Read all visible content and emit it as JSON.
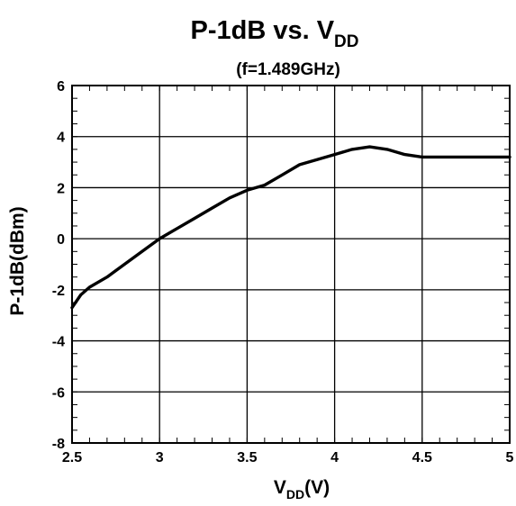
{
  "chart_data": {
    "type": "line",
    "title_main": "P-1dB vs. V",
    "title_sub": "DD",
    "subtitle": "(f=1.489GHz)",
    "xlabel_main": "V",
    "xlabel_sub": "DD",
    "xlabel_unit": "(V)",
    "ylabel": "P-1dB(dBm)",
    "xlim": [
      2.5,
      5
    ],
    "ylim": [
      -8,
      6
    ],
    "xticks": [
      2.5,
      3,
      3.5,
      4,
      4.5,
      5
    ],
    "xtick_labels": [
      "2.5",
      "3",
      "3.5",
      "4",
      "4.5",
      "5"
    ],
    "yticks": [
      -8,
      -6,
      -4,
      -2,
      0,
      2,
      4,
      6
    ],
    "ytick_labels": [
      "-8",
      "-6",
      "-4",
      "-2",
      "0",
      "2",
      "4",
      "6"
    ],
    "grid": true,
    "line_color": "#000000",
    "series": [
      {
        "x": [
          2.5,
          2.55,
          2.6,
          2.7,
          2.8,
          2.9,
          3.0,
          3.1,
          3.2,
          3.3,
          3.4,
          3.5,
          3.6,
          3.7,
          3.8,
          3.9,
          4.0,
          4.1,
          4.2,
          4.3,
          4.4,
          4.5,
          4.6,
          4.8,
          5.0
        ],
        "y": [
          -2.7,
          -2.2,
          -1.9,
          -1.5,
          -1.0,
          -0.5,
          0.0,
          0.4,
          0.8,
          1.2,
          1.6,
          1.9,
          2.1,
          2.5,
          2.9,
          3.1,
          3.3,
          3.5,
          3.6,
          3.5,
          3.3,
          3.2,
          3.2,
          3.2,
          3.2
        ]
      }
    ]
  }
}
